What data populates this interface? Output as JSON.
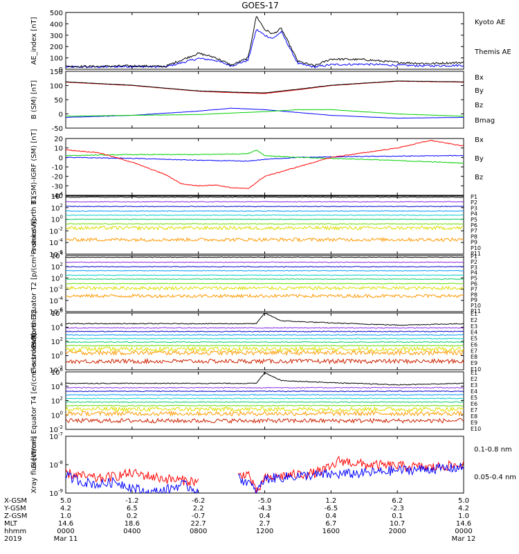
{
  "title": "GOES-17",
  "colors": {
    "black": "#000000",
    "blue": "#0000ff",
    "green": "#00d000",
    "red": "#ff0000",
    "channels": [
      "#000000",
      "#8a2be2",
      "#0000cc",
      "#0099ff",
      "#00cccc",
      "#00cc66",
      "#66dd00",
      "#dddd00",
      "#ff9900",
      "#cc2200",
      "#990000"
    ]
  },
  "chart_data": [
    {
      "type": "line",
      "ylabel": "AE_index [nT]",
      "ylim": [
        0,
        500
      ],
      "yticks": [
        "500",
        "400",
        "300",
        "200",
        "100",
        "0"
      ],
      "legend": [
        {
          "label": "Kyoto AE",
          "color": "#0000ff"
        },
        {
          "label": "Themis AE",
          "color": "#000000"
        }
      ],
      "series": [
        {
          "name": "Kyoto AE",
          "color": "#0000ff",
          "x": [
            0,
            2,
            4,
            6,
            8,
            9,
            10,
            11,
            11.5,
            12,
            12.5,
            13,
            14,
            15,
            16,
            18,
            20,
            22,
            24
          ],
          "y": [
            20,
            20,
            25,
            20,
            95,
            80,
            30,
            80,
            350,
            300,
            270,
            330,
            50,
            20,
            40,
            45,
            35,
            30,
            35
          ]
        },
        {
          "name": "Themis AE",
          "color": "#000000",
          "x": [
            0,
            2,
            4,
            6,
            8,
            9,
            10,
            11,
            11.5,
            12,
            12.5,
            13,
            14,
            15,
            16,
            18,
            20,
            22,
            24
          ],
          "y": [
            25,
            25,
            30,
            25,
            140,
            105,
            35,
            100,
            470,
            350,
            310,
            360,
            70,
            30,
            90,
            85,
            60,
            50,
            60
          ]
        }
      ]
    },
    {
      "type": "line",
      "ylabel": "B (SM) [nT]",
      "ylim": [
        -50,
        150
      ],
      "yticks": [
        "150",
        "100",
        "50",
        "0",
        "-50"
      ],
      "legend": [
        {
          "label": "Bx",
          "color": "#0000ff"
        },
        {
          "label": "By",
          "color": "#00d000"
        },
        {
          "label": "Bz",
          "color": "#ff0000"
        },
        {
          "label": "Bmag",
          "color": "#000000"
        }
      ],
      "series": [
        {
          "name": "Bx",
          "color": "#0000ff",
          "x": [
            0,
            4,
            8,
            10,
            12,
            14,
            16,
            20,
            24
          ],
          "y": [
            -12,
            -5,
            10,
            20,
            15,
            5,
            -5,
            -15,
            -12
          ]
        },
        {
          "name": "By",
          "color": "#00d000",
          "x": [
            0,
            4,
            8,
            12,
            14,
            16,
            20,
            24
          ],
          "y": [
            -8,
            -5,
            -2,
            8,
            15,
            15,
            0,
            -8
          ]
        },
        {
          "name": "Bz",
          "color": "#ff0000",
          "x": [
            0,
            4,
            8,
            10,
            12,
            14,
            16,
            20,
            24
          ],
          "y": [
            112,
            100,
            80,
            75,
            72,
            85,
            100,
            115,
            112
          ]
        },
        {
          "name": "Bmag",
          "color": "#000000",
          "x": [
            0,
            4,
            8,
            10,
            12,
            14,
            16,
            20,
            24
          ],
          "y": [
            113,
            101,
            81,
            77,
            74,
            87,
            101,
            116,
            113
          ]
        }
      ]
    },
    {
      "type": "line",
      "ylabel": "B (SM)-IGRF (SM) [nT]",
      "ylim": [
        -40,
        20
      ],
      "yticks": [
        "20",
        "10",
        "0",
        "-10",
        "-20",
        "-30",
        "-40"
      ],
      "legend": [
        {
          "label": "Bx",
          "color": "#0000ff"
        },
        {
          "label": "By",
          "color": "#00d000"
        },
        {
          "label": "Bz",
          "color": "#ff0000"
        }
      ],
      "series": [
        {
          "name": "Bx",
          "color": "#0000ff",
          "x": [
            0,
            4,
            8,
            11,
            12,
            14,
            18,
            24
          ],
          "y": [
            0,
            -1,
            -3,
            -4,
            -2,
            0,
            1,
            2
          ]
        },
        {
          "name": "By",
          "color": "#00d000",
          "x": [
            0,
            4,
            8,
            11,
            11.5,
            12,
            14,
            18,
            24
          ],
          "y": [
            2,
            3,
            3,
            4,
            8,
            2,
            0,
            -2,
            -6
          ]
        },
        {
          "name": "Bz",
          "color": "#ff0000",
          "x": [
            0,
            2,
            4,
            6,
            7,
            8,
            9,
            10,
            11,
            12,
            14,
            16,
            18,
            20,
            22,
            24
          ],
          "y": [
            8,
            5,
            -5,
            -18,
            -28,
            -30,
            -29,
            -32,
            -33,
            -20,
            -10,
            0,
            5,
            10,
            18,
            12
          ]
        }
      ]
    },
    {
      "type": "line",
      "ylabel": "Protons North T1",
      "ylog": true,
      "yticks": [
        "10^4",
        "10^2",
        "10^0",
        "10^-2",
        "10^-4",
        "10^-6"
      ],
      "legend": [
        {
          "label": "P1"
        },
        {
          "label": "P2"
        },
        {
          "label": "P3"
        },
        {
          "label": "P4"
        },
        {
          "label": "P5"
        },
        {
          "label": "P6"
        },
        {
          "label": "P7"
        },
        {
          "label": "P8"
        },
        {
          "label": "P9"
        },
        {
          "label": "P10"
        },
        {
          "label": "P11"
        }
      ],
      "log_levels": [
        3.8,
        3.0,
        2.2,
        1.4,
        0.7,
        0.0,
        -0.8,
        -1.5,
        -3.5
      ]
    },
    {
      "type": "line",
      "ylabel": "Protons Equator T2 [p/(cm²-s-sr-keV)]",
      "ylog": true,
      "yticks": [
        "10^4",
        "10^2",
        "10^0",
        "10^-2",
        "10^-4",
        "10^-6"
      ],
      "legend": [
        {
          "label": "P1"
        },
        {
          "label": "P2"
        },
        {
          "label": "P3"
        },
        {
          "label": "P4"
        },
        {
          "label": "P5"
        },
        {
          "label": "P6"
        },
        {
          "label": "P7"
        },
        {
          "label": "P8"
        },
        {
          "label": "P9"
        },
        {
          "label": "P10"
        },
        {
          "label": "P11"
        }
      ],
      "log_levels": [
        3.7,
        2.8,
        2.0,
        1.3,
        0.5,
        -0.2,
        -1.0,
        -1.8,
        -3.2
      ]
    },
    {
      "type": "line",
      "ylabel": "Electrons North T3",
      "ylog": true,
      "yticks": [
        "10^6",
        "10^4",
        "10^2",
        "10^0",
        "10^-2"
      ],
      "legend": [
        {
          "label": "E1"
        },
        {
          "label": "E2"
        },
        {
          "label": "E3"
        },
        {
          "label": "E4"
        },
        {
          "label": "E5"
        },
        {
          "label": "E6"
        },
        {
          "label": "E7"
        },
        {
          "label": "E8"
        },
        {
          "label": "E9"
        },
        {
          "label": "E10"
        }
      ],
      "log_levels": [
        4.5,
        3.9,
        3.4,
        2.9,
        2.4,
        1.9,
        1.4,
        0.9,
        0.4,
        -0.8
      ]
    },
    {
      "type": "line",
      "ylabel": "Electrons Equator T4 [e/(cm²-s-sr-keV)]",
      "ylog": true,
      "yticks": [
        "10^6",
        "10^4",
        "10^2",
        "10^0",
        "10^-2"
      ],
      "legend": [
        {
          "label": "E1"
        },
        {
          "label": "E2"
        },
        {
          "label": "E3"
        },
        {
          "label": "E4"
        },
        {
          "label": "E5"
        },
        {
          "label": "E6"
        },
        {
          "label": "E7"
        },
        {
          "label": "E8"
        },
        {
          "label": "E9"
        },
        {
          "label": "E10"
        }
      ],
      "log_levels": [
        4.4,
        3.8,
        3.3,
        2.8,
        2.3,
        1.8,
        1.3,
        0.8,
        0.2,
        -0.8
      ]
    },
    {
      "type": "line",
      "ylabel": "Xray flux [W/m²]",
      "ylog": true,
      "yticks": [
        "10^-7",
        "10^-8",
        "10^-9"
      ],
      "legend": [
        {
          "label": "0.1-0.8 nm",
          "color": "#ff0000"
        },
        {
          "label": "0.05-0.4 nm",
          "color": "#0000ff"
        }
      ],
      "series": [
        {
          "name": "0.1-0.8 nm",
          "color": "#ff0000",
          "segments": [
            {
              "x": [
                0,
                2,
                4,
                6,
                8
              ],
              "y": [
                -8.3,
                -8.5,
                -8.3,
                -8.5,
                -8.6
              ]
            },
            {
              "x": [
                10.4,
                11,
                11.5,
                12,
                13,
                14,
                15,
                16,
                16.5,
                17,
                18,
                20,
                22,
                24
              ],
              "y": [
                -8.4,
                -8.3,
                -9.0,
                -8.5,
                -8.4,
                -8.35,
                -8.3,
                -8.1,
                -7.85,
                -7.9,
                -8.0,
                -8.05,
                -8.1,
                -8.0
              ]
            }
          ]
        },
        {
          "name": "0.05-0.4 nm",
          "color": "#0000ff",
          "segments": [
            {
              "x": [
                0,
                1,
                2,
                3,
                4,
                5,
                6,
                7,
                8
              ],
              "y": [
                -8.4,
                -8.6,
                -8.7,
                -8.6,
                -8.8,
                -9.0,
                -8.9,
                -8.7,
                -8.9
              ]
            },
            {
              "x": [
                10.4,
                11,
                11.5,
                12,
                14,
                16,
                18,
                20,
                22,
                24
              ],
              "y": [
                -8.5,
                -8.6,
                -9.0,
                -8.5,
                -8.4,
                -8.35,
                -8.3,
                -8.2,
                -8.15,
                -8.1
              ]
            }
          ]
        }
      ]
    }
  ],
  "xaxis": {
    "row_labels": [
      "X-GSM",
      "Y-GSM",
      "Z-GSM",
      "MLT",
      "hhmm",
      "2019"
    ],
    "columns": [
      [
        "5.0",
        "4.2",
        "1.0",
        "14.6",
        "0000",
        "Mar 11"
      ],
      [
        "-1.2",
        "6.5",
        "0.2",
        "18.6",
        "0400",
        ""
      ],
      [
        "-6.2",
        "2.2",
        "-0.7",
        "22.7",
        "0800",
        ""
      ],
      [
        "-5.0",
        "-4.3",
        "0.4",
        "2.7",
        "1200",
        ""
      ],
      [
        "1.2",
        "-6.5",
        "0.4",
        "6.7",
        "1600",
        ""
      ],
      [
        "6.2",
        "-2.3",
        "0.1",
        "10.7",
        "2000",
        ""
      ],
      [
        "5.0",
        "4.2",
        "1.0",
        "14.6",
        "0000",
        "Mar 12"
      ]
    ]
  }
}
